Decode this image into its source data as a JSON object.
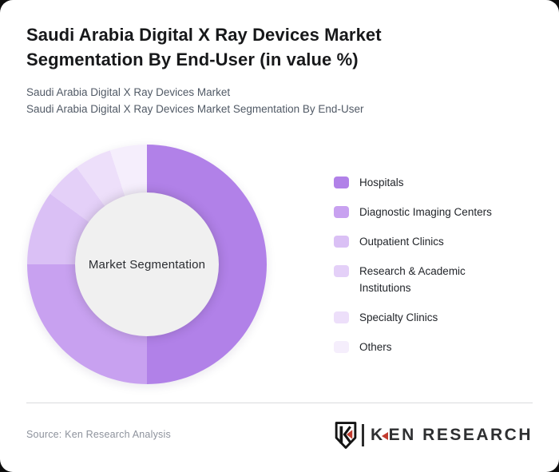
{
  "page": {
    "background_color": "#0d0d0d",
    "card_color": "#ffffff"
  },
  "header": {
    "title": "Saudi Arabia Digital X Ray Devices Market Segmentation By End-User (in value %)",
    "subtitle_line1": "Saudi Arabia Digital X Ray Devices Market",
    "subtitle_line2": "Saudi Arabia Digital X Ray Devices Market Segmentation By End-User"
  },
  "chart_data": {
    "type": "pie",
    "variant": "donut",
    "start_angle_deg": 0,
    "direction": "clockwise",
    "center_label": "Market Segmentation",
    "legend_position": "right",
    "categories": [
      "Hospitals",
      "Diagnostic Imaging Centers",
      "Outpatient Clinics",
      "Research & Academic Institutions",
      "Specialty Clinics",
      "Others"
    ],
    "values": [
      50,
      25,
      10,
      5,
      5,
      5
    ],
    "colors": [
      "#b181e8",
      "#c8a1f0",
      "#dac0f5",
      "#e4d0f8",
      "#eddffa",
      "#f5eefc"
    ],
    "hole_color": "#f0f0f0",
    "hole_text_color": "#2b2d31"
  },
  "footer": {
    "source": "Source: Ken Research Analysis",
    "logo_text": "KEN RESEARCH",
    "logo_accent_color": "#c23b2e"
  }
}
